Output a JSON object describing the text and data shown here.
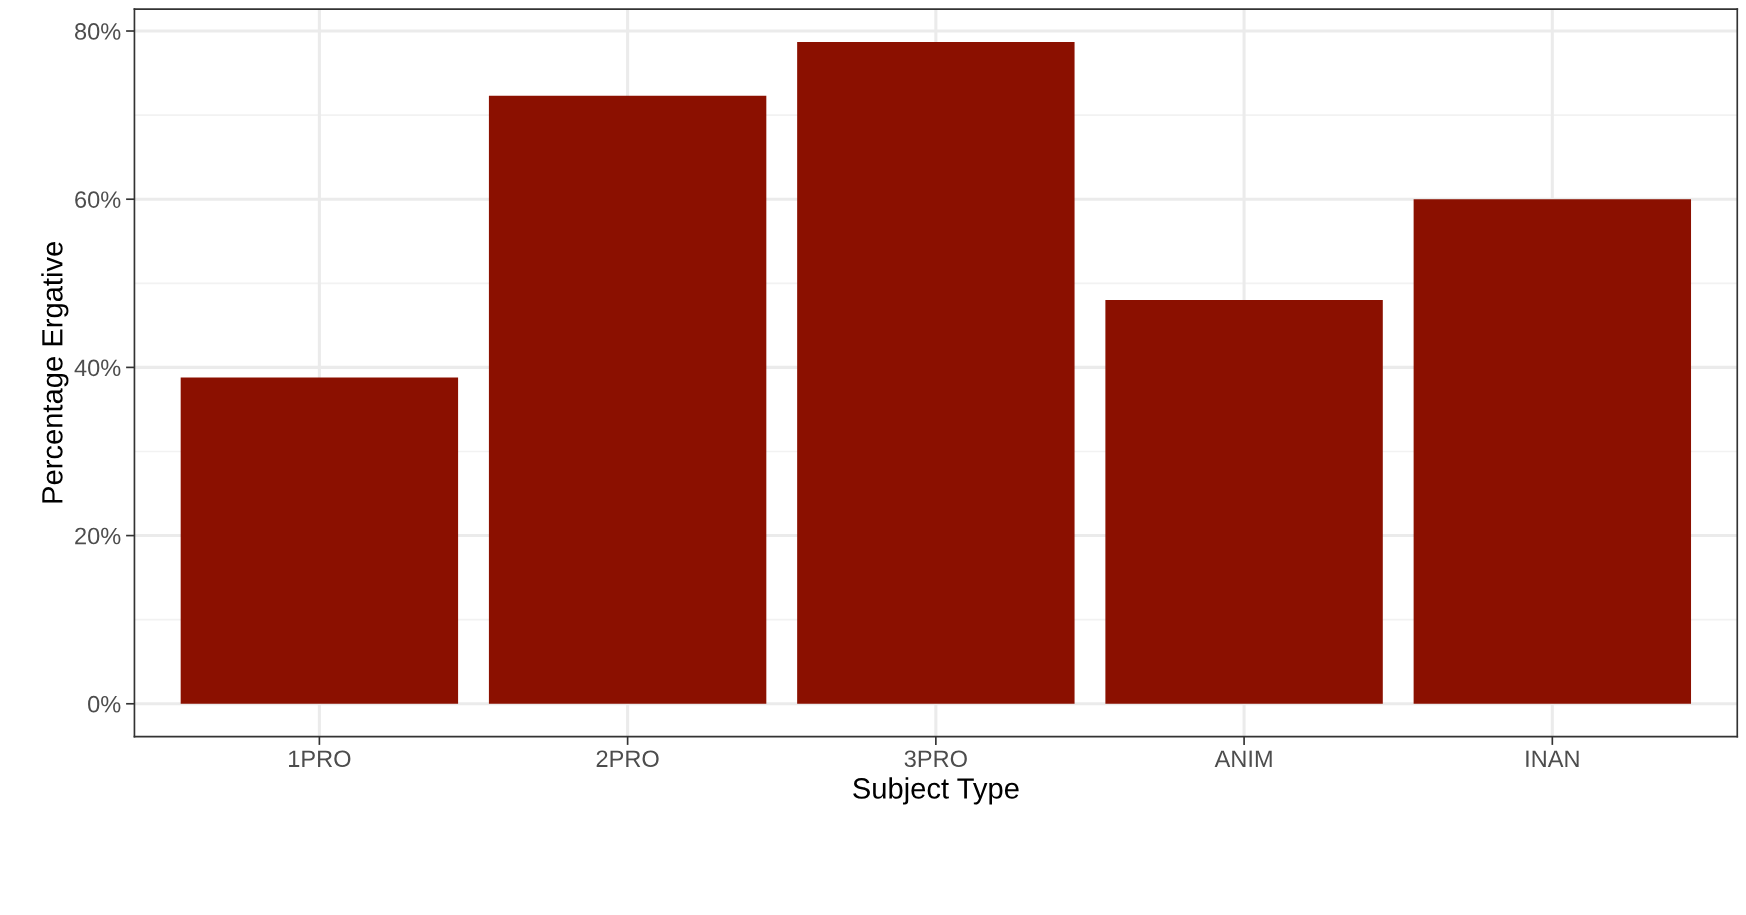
{
  "chart_data": {
    "type": "bar",
    "xlabel": "Subject Type",
    "ylabel": "Percentage Ergative",
    "categories": [
      "1PRO",
      "2PRO",
      "3PRO",
      "ANIM",
      "INAN"
    ],
    "values": [
      38.8,
      72.3,
      78.7,
      48.0,
      60.0
    ],
    "color": "#8b1000",
    "ylim": [
      -3.9,
      82.6
    ],
    "yticks": [
      {
        "value": 0,
        "label": "0%"
      },
      {
        "value": 20,
        "label": "20%"
      },
      {
        "value": 40,
        "label": "40%"
      },
      {
        "value": 60,
        "label": "60%"
      },
      {
        "value": 80,
        "label": "80%"
      }
    ],
    "grid": true
  }
}
